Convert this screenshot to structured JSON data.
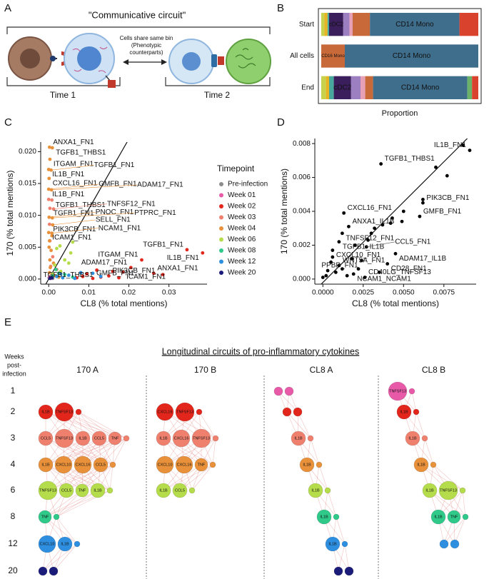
{
  "panel_a": {
    "letter": "A",
    "title": "\"Communicative circuit\"",
    "note": [
      "Cells share same bin",
      "(Phenotypic",
      "counterparts)"
    ],
    "time_1": "Time 1",
    "time_2": "Time 2"
  },
  "chart_data": [
    {
      "type": "stacked_bar_h",
      "letter": "B",
      "categories": [
        "Start",
        "All cells",
        "End"
      ],
      "x_label": "Proportion",
      "xlim": [
        0,
        1
      ],
      "series": [
        {
          "color": "#c8d14a",
          "values": [
            0.02,
            0,
            0.03
          ]
        },
        {
          "color": "#e6b422",
          "values": [
            0.02,
            0,
            0.02
          ]
        },
        {
          "color": "#48a89c",
          "values": [
            0.01,
            0,
            0.03
          ]
        },
        {
          "color": "#3b1f5c",
          "values": [
            0.09,
            0,
            0.11
          ],
          "labels": [
            "cDC2",
            null,
            "cDC2"
          ]
        },
        {
          "color": "#9b7fc0",
          "values": [
            0.04,
            0,
            0.06
          ]
        },
        {
          "color": "#e7a0b6",
          "values": [
            0.02,
            0,
            0.03
          ]
        },
        {
          "color": "#c8693a",
          "values": [
            0.11,
            0.15,
            0.05
          ],
          "labels": [
            null,
            "CD16 Mono",
            null
          ]
        },
        {
          "color": "#3f6e8c",
          "values": [
            0.57,
            0.85,
            0.6
          ],
          "labels": [
            "CD14 Mono",
            "CD14 Mono",
            "CD14 Mono"
          ]
        },
        {
          "color": "#6ab26a",
          "values": [
            0,
            0,
            0.03
          ]
        },
        {
          "color": "#d9432e",
          "values": [
            0.12,
            0,
            0.04
          ]
        }
      ]
    },
    {
      "type": "scatter",
      "letter": "C",
      "x_label": "CL8 (% total mentions)",
      "y_label": "170 (% total mentions)",
      "xlim": [
        -0.002,
        0.0395
      ],
      "ylim": [
        -0.0008,
        0.0215
      ],
      "xticks": [
        {
          "value": 0,
          "label": "0.00"
        },
        0.01,
        0.02,
        0.03
      ],
      "yticks": [
        {
          "value": 0,
          "label": "0.000"
        },
        0.005,
        {
          "value": 0.01,
          "label": "0.010"
        },
        0.015,
        {
          "value": 0.02,
          "label": "0.020"
        }
      ],
      "reference_line": {
        "slope": 1.1,
        "intercept": 0
      },
      "legend": "right",
      "legend_title": "Timepoint",
      "series": [
        {
          "name": "Pre-infection",
          "color": "#8c8c8c",
          "x": [
            0.0001,
            0.0004,
            0.001
          ],
          "values": [
            0.0002,
            0.0004,
            0.0001
          ],
          "labels": [
            null,
            null,
            null
          ]
        },
        {
          "name": "Week 01",
          "color": "#e85aa8",
          "x": [
            0.0002,
            0.0006
          ],
          "values": [
            0.0003,
            0.0001
          ],
          "labels": [
            null,
            null
          ]
        },
        {
          "name": "Week 02",
          "color": "#e3261c",
          "x": [
            0.0345,
            0.0384,
            0.0232,
            0.0205,
            0.0185,
            0.0262,
            0.012,
            0.015,
            0.011,
            0.0085,
            0.0095,
            0.013,
            0.016,
            0.007,
            0.0285,
            0.0175
          ],
          "values": [
            0.0046,
            0.0041,
            0.003,
            0.0018,
            0.0011,
            0.0009,
            0.0014,
            0.0005,
            0.0001,
            0.0004,
            0.0008,
            0.0003,
            0.0012,
            0.0002,
            0.0007,
            0.0002
          ],
          "labels": [
            "TGFB1_FN1",
            "IL1B_FN1",
            "ITGAM_FN1",
            "ADAM17_FN1",
            "ICAM1_FN1",
            "ANXA1_FN1",
            "TGFB1_THBS1",
            "PIK3CB_FN1",
            "GMFB_FN1",
            null,
            null,
            null,
            null,
            null,
            null,
            null
          ]
        },
        {
          "name": "Week 03",
          "color": "#f0806e",
          "x": [
            0,
            0.0008,
            0.0003,
            0.0012,
            0.0002,
            0.0003,
            0.001,
            0.002,
            0.0005
          ],
          "values": [
            0.0125,
            0.0124,
            0.0111,
            0.011,
            0.0086,
            0.006,
            0.0035,
            0.0015,
            0.002
          ],
          "labels": [
            "IL1B_FN1",
            "TGFB1_THBS1",
            "TGFB1_FN1",
            "TNFSF12_FN1",
            "PIK3CB_FN1",
            null,
            null,
            null,
            null
          ]
        },
        {
          "name": "Week 04",
          "color": "#e8913a",
          "x": [
            0.0002,
            0.0009,
            0.0003,
            0,
            0.0006,
            0.0001,
            0,
            0.0007,
            0.0001,
            0.0009,
            0.001,
            0,
            0.0008,
            0.0002,
            0.0001,
            0.0006,
            0.0003,
            0.0012,
            0.0004,
            0.0002,
            0.0015,
            0.0025,
            0.0008
          ],
          "values": [
            0.0207,
            0.0206,
            0.0188,
            0.0172,
            0.0171,
            0.0158,
            0.0141,
            0.014,
            0.0097,
            0.0096,
            0.0085,
            0.0073,
            0.0072,
            0.006,
            0.005,
            0.0045,
            0.003,
            0.0025,
            0.0018,
            0.001,
            0.0005,
            0.0003,
            0.0068
          ],
          "labels": [
            "ANXA1_FN1",
            "TGFB1_THBS1",
            "ITGAM_FN1",
            "IL1B_FN1",
            "TGFB1_FN1",
            "CXCL16_FN1",
            "GMFB_FN1",
            "ADAM17_FN1",
            "PNOC_FN1",
            "PTPRC_FN1",
            "SELL_FN1",
            "ICAM1_FN1",
            "NCAM1_FN1",
            null,
            null,
            null,
            null,
            null,
            null,
            null,
            null,
            null,
            null
          ]
        },
        {
          "name": "Week 06",
          "color": "#b5dc4a",
          "x": [
            0.002,
            0.0028,
            0.006,
            0.004,
            0.0015,
            0.0055,
            0.003,
            0.001,
            0.005
          ],
          "values": [
            0.0048,
            0.0052,
            0.0058,
            0.003,
            0.0022,
            0.0041,
            0.0012,
            0.0008,
            0.0025
          ],
          "labels": [
            null,
            null,
            null,
            null,
            null,
            null,
            null,
            null,
            null
          ]
        },
        {
          "name": "Week 08",
          "color": "#2fc98a",
          "x": [
            0.001,
            0.0025,
            0.004,
            0.0018,
            0.006
          ],
          "values": [
            0.0005,
            0.0009,
            0.0007,
            0.0015,
            0.0003
          ],
          "labels": [
            null,
            null,
            null,
            null,
            null
          ]
        },
        {
          "name": "Week 12",
          "color": "#2e8fe0",
          "x": [
            0.0005,
            0.002,
            0.0035,
            0.005,
            0.008,
            0.011,
            0.013,
            0.0065,
            0.003
          ],
          "values": [
            0.0002,
            0.0004,
            0.0002,
            0.0006,
            0.001,
            0.0009,
            0.0004,
            0.0001,
            0.0008
          ],
          "labels": [
            null,
            null,
            null,
            null,
            null,
            null,
            null,
            null,
            null
          ]
        },
        {
          "name": "Week 20",
          "color": "#1b1b7a",
          "x": [
            0.0003,
            0.0008
          ],
          "values": [
            0.0001,
            0.0002
          ],
          "labels": [
            null,
            null
          ]
        }
      ]
    },
    {
      "type": "scatter",
      "letter": "D",
      "x_label": "CL8 (% total mentions)",
      "y_label": "170 (% total mentions)",
      "xlim": [
        -0.0005,
        0.0095
      ],
      "ylim": [
        -0.0003,
        0.0083
      ],
      "xticks": [
        {
          "value": 0,
          "label": "0.0000"
        },
        0.0025,
        {
          "value": 0.005,
          "label": "0.0050"
        },
        0.0075
      ],
      "yticks": [
        {
          "value": 0,
          "label": "0.000"
        },
        0.002,
        0.004,
        0.006,
        0.008
      ],
      "reference_line": {
        "slope": 0.95,
        "intercept": -0.0002
      },
      "series": [
        {
          "color": "#000000",
          "x": [
            0.0091,
            0.0036,
            0.0062,
            0.006,
            0.0013,
            0.0016,
            0.0012,
            0.001,
            0.0027,
            0.0006,
            0.0045,
            0.0024,
            0.004,
            0.001,
            0.0019,
            0.0026,
            0.0087,
            0.007,
            0.0077,
            0.0062,
            0.005,
            0.0049,
            0.0043,
            0.0042,
            0.0037,
            0.0032,
            0.003,
            0.0028,
            0.002,
            0.0018,
            0.0005,
            0.0003,
            0.0008,
            0.0002,
            0.0012,
            0.0015,
            0,
            0.0006,
            0.0022,
            0.0035
          ],
          "values": [
            0.0076,
            0.0068,
            0.0045,
            0.0037,
            0.0039,
            0.0031,
            0.0027,
            0.0022,
            0.0019,
            0.0017,
            0.0015,
            0.0011,
            0.0009,
            0.0008,
            0.0003,
            0.0001,
            0.0079,
            0.0066,
            0.0061,
            0.0047,
            0.004,
            0.0034,
            0.0036,
            0.0033,
            0.0032,
            0.003,
            0.0027,
            0.0023,
            0.002,
            0.0012,
            0.001,
            0.0005,
            0.0004,
            0.0002,
            0.0006,
            0.0002,
            0.0001,
            0.0013,
            0.0006,
            0.0004
          ],
          "labels": [
            "IL1B_FN1",
            "TGFB1_THBS1",
            "PIK3CB_FN1",
            "GMFB_FN1",
            "CXCL16_FN1",
            "ANXA1_IL1B",
            "TNFSF12_FN1",
            "TGFB1_IL1B",
            "CCL5_FN1",
            "CXCL10_FN1",
            "ADAM17_IL1B",
            "PPBP_FN1",
            "CD28_FN1",
            "WNT5A_FN1",
            "NCAM1_NCAM1",
            "CD40LG_TNFSF13",
            null,
            null,
            null,
            null,
            null,
            null,
            null,
            null,
            null,
            null,
            null,
            null,
            null,
            null,
            null,
            null,
            null,
            null,
            null,
            null,
            null,
            null,
            null,
            null
          ]
        }
      ]
    }
  ],
  "panel_e": {
    "letter": "E",
    "title": "Longitudinal circuits of pro-inflammatory cytokines",
    "row_header": [
      "Weeks",
      "post-",
      "infection"
    ],
    "rows": [
      "1",
      "2",
      "3",
      "4",
      "6",
      "8",
      "12",
      "20"
    ],
    "row_colors": [
      "#e85aa8",
      "#e3261c",
      "#f0806e",
      "#e8913a",
      "#b5dc4a",
      "#2fc98a",
      "#2e8fe0",
      "#1b1b7a"
    ],
    "columns": [
      {
        "title": "170 A",
        "nodes": [
          [],
          [
            "IL1B",
            "TNFSF13"
          ],
          [
            "CCL5",
            "TNFSF13",
            "IL1B",
            "CCL5",
            "TNF"
          ],
          [
            "IL1B",
            "CXCL10",
            "CXCL16",
            "CCL5"
          ],
          [
            "TNFSF13",
            "CCL5",
            "TNF",
            "IL1B"
          ],
          [
            "TNF"
          ],
          [
            "CXCL10",
            "IL1B"
          ],
          []
        ]
      },
      {
        "title": "170 B",
        "nodes": [
          [],
          [
            "CXCL16",
            "TNFSF13"
          ],
          [
            "IL1B",
            "CXCL16",
            "TNFSF13"
          ],
          [
            "CXCL10",
            "CXCL16",
            "TNF"
          ],
          [
            "IL1B",
            "CCL5"
          ],
          [],
          [],
          []
        ]
      },
      {
        "title": "CL8 A",
        "nodes": [
          [],
          [],
          [
            "IL1B"
          ],
          [
            "IL1B"
          ],
          [
            "IL1B"
          ],
          [
            "IL1B"
          ],
          [
            "IL1B"
          ],
          []
        ]
      },
      {
        "title": "CL8 B",
        "nodes": [
          [
            "TNFSF13"
          ],
          [
            "IL1B"
          ],
          [
            "IL1B"
          ],
          [
            "IL1B"
          ],
          [
            "IL1B",
            "TNFSF13"
          ],
          [
            "IL1B",
            "TNF"
          ],
          [],
          []
        ]
      }
    ]
  }
}
